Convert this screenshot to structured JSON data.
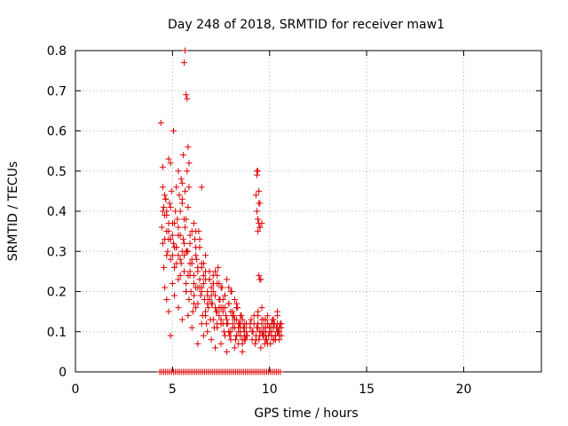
{
  "chart_data": {
    "type": "scatter",
    "title": "Day 248 of 2018, SRMTID for receiver maw1",
    "xlabel": "GPS time / hours",
    "ylabel": "SRMTID / TECUs",
    "xlim": [
      0,
      24
    ],
    "ylim": [
      0,
      0.8
    ],
    "xticks": [
      0,
      5,
      10,
      15,
      20
    ],
    "yticks": [
      0,
      0.1,
      0.2,
      0.3,
      0.4,
      0.5,
      0.6,
      0.7,
      0.8
    ],
    "xtick_labels": [
      "0",
      "5",
      "10",
      "15",
      "20"
    ],
    "ytick_labels": [
      "0",
      "0.1",
      "0.2",
      "0.3",
      "0.4",
      "0.5",
      "0.6",
      "0.7",
      "0.8"
    ],
    "grid": true,
    "marker": "+",
    "color": "#dd0000",
    "series": [
      {
        "name": "maw1",
        "x": [
          4.45,
          4.55,
          4.6,
          4.65,
          4.7,
          4.75,
          4.8,
          4.85,
          4.9,
          4.95,
          5.0,
          5.05,
          5.1,
          5.15,
          5.2,
          5.25,
          5.3,
          5.35,
          5.4,
          5.45,
          5.5,
          5.55,
          5.6,
          5.65,
          5.7,
          5.75,
          5.8,
          5.85,
          5.9,
          5.95,
          6.0,
          6.05,
          6.1,
          6.15,
          6.2,
          6.25,
          6.3,
          6.35,
          6.4,
          6.45,
          6.5,
          6.55,
          6.6,
          6.65,
          6.7,
          6.75,
          6.8,
          6.85,
          6.9,
          6.95,
          7.0,
          7.05,
          7.1,
          7.15,
          7.2,
          7.25,
          7.3,
          7.35,
          7.4,
          7.45,
          7.5,
          7.55,
          7.6,
          7.65,
          7.7,
          7.75,
          7.8,
          7.85,
          7.9,
          7.95,
          8.0,
          8.05,
          8.1,
          8.15,
          8.2,
          8.25,
          8.3,
          8.35,
          8.4,
          8.45,
          8.5,
          8.55,
          8.6,
          8.65,
          8.7,
          8.75,
          8.8,
          8.85,
          9.0,
          9.05,
          9.1,
          9.15,
          9.2,
          9.25,
          9.3,
          9.35,
          9.4,
          9.45,
          9.5,
          9.55,
          9.6,
          9.65,
          9.7,
          9.75,
          9.8,
          9.85,
          9.9,
          9.95,
          10.0,
          10.05,
          10.1,
          10.15,
          10.2,
          10.25,
          10.3,
          10.35,
          10.4,
          10.45,
          10.5,
          10.55,
          10.6,
          4.5,
          4.6,
          4.7,
          4.8,
          4.9,
          5.0,
          5.1,
          5.2,
          5.3,
          5.4,
          5.5,
          5.6,
          5.7,
          5.8,
          5.9,
          6.0,
          6.1,
          6.2,
          6.3,
          6.4,
          6.5,
          6.6,
          6.7,
          6.8,
          6.9,
          7.0,
          7.1,
          7.2,
          7.3,
          7.4,
          7.5,
          7.6,
          7.7,
          7.8,
          7.9,
          8.0,
          8.1,
          8.2,
          8.3,
          8.4,
          8.5,
          8.6,
          8.7,
          8.8,
          9.0,
          9.1,
          9.2,
          9.3,
          9.4,
          9.5,
          9.6,
          9.7,
          9.8,
          9.9,
          10.0,
          10.1,
          10.2,
          10.3,
          10.4,
          10.5,
          4.5,
          4.6,
          4.65,
          4.7,
          4.8,
          4.9,
          5.0,
          5.1,
          5.2,
          5.3,
          5.4,
          5.45,
          5.5,
          5.6,
          5.65,
          5.7,
          5.75,
          5.8,
          5.85,
          5.9,
          6.0,
          6.1,
          6.2,
          6.3,
          6.4,
          6.5,
          6.6,
          6.7,
          6.8,
          6.9,
          7.0,
          7.1,
          7.2,
          7.3,
          7.4,
          7.5,
          7.6,
          7.7,
          7.8,
          7.9,
          8.0,
          8.1,
          8.2,
          8.3,
          8.4,
          8.5,
          8.6,
          8.7,
          8.8,
          9.3,
          9.35,
          9.4,
          9.45,
          9.5,
          9.55,
          9.6,
          9.7,
          9.8,
          9.9,
          10.0,
          10.1,
          10.2,
          10.3,
          10.4,
          10.5,
          10.6,
          4.5,
          4.55,
          4.6,
          4.7,
          4.8,
          4.9,
          5.0,
          5.1,
          5.2,
          5.3,
          5.4,
          5.5,
          5.6,
          5.7,
          5.8,
          5.9,
          6.0,
          6.1,
          6.2,
          6.3,
          6.4,
          6.5,
          6.6,
          6.7,
          6.8,
          6.9,
          7.0,
          7.1,
          7.2,
          7.3,
          7.4,
          7.5,
          7.6,
          7.7,
          7.8,
          7.9,
          8.0,
          8.1,
          8.2,
          8.3,
          8.4,
          8.5,
          8.6,
          8.7,
          9.4,
          9.5,
          9.6,
          9.7,
          9.8,
          9.9,
          10.0,
          10.1,
          10.2,
          10.3,
          10.4,
          10.5,
          4.5,
          4.7,
          4.9,
          5.1,
          5.3,
          5.5,
          5.7,
          5.9,
          6.1,
          6.3,
          6.5,
          6.7,
          6.9,
          7.1,
          7.3,
          7.5,
          7.7,
          7.9,
          8.1,
          8.3,
          8.5,
          8.7,
          9.4,
          9.6,
          9.8,
          10.0,
          10.2,
          10.4,
          10.6,
          4.4,
          4.8,
          5.05,
          5.3,
          5.55,
          5.6,
          5.65,
          5.7,
          5.75,
          5.8,
          5.85,
          6.2,
          6.5,
          9.35,
          9.4,
          9.45,
          9.5,
          9.35,
          9.4,
          9.45,
          9.5,
          9.4,
          9.45,
          9.5,
          4.35,
          4.45,
          4.55,
          4.65,
          4.75,
          4.85,
          4.95,
          5.05,
          5.15,
          5.25,
          5.35,
          5.45,
          5.55,
          5.65,
          5.75,
          5.85,
          5.95,
          6.05,
          6.15,
          6.25,
          6.35,
          6.45,
          6.55,
          6.65,
          6.75,
          6.85,
          6.95,
          7.05,
          7.15,
          7.25,
          7.35,
          7.45,
          7.55,
          7.65,
          7.75,
          7.85,
          7.95,
          8.05,
          8.15,
          8.25,
          8.35,
          8.45,
          8.55,
          8.65,
          8.75,
          8.85,
          8.95,
          9.05,
          9.15,
          9.25,
          9.35,
          9.45,
          9.55,
          9.65,
          9.75,
          9.85,
          9.95,
          10.05,
          10.15,
          10.25,
          10.35,
          10.45,
          10.55
        ],
        "y": [
          0.36,
          0.41,
          0.33,
          0.43,
          0.39,
          0.3,
          0.35,
          0.42,
          0.28,
          0.45,
          0.37,
          0.32,
          0.26,
          0.4,
          0.31,
          0.38,
          0.29,
          0.44,
          0.34,
          0.27,
          0.47,
          0.33,
          0.25,
          0.36,
          0.22,
          0.3,
          0.24,
          0.18,
          0.32,
          0.2,
          0.27,
          0.15,
          0.24,
          0.33,
          0.21,
          0.28,
          0.17,
          0.35,
          0.23,
          0.19,
          0.26,
          0.14,
          0.22,
          0.18,
          0.25,
          0.12,
          0.2,
          0.16,
          0.23,
          0.13,
          0.21,
          0.17,
          0.24,
          0.11,
          0.19,
          0.15,
          0.22,
          0.26,
          0.14,
          0.18,
          0.12,
          0.21,
          0.16,
          0.1,
          0.19,
          0.14,
          0.23,
          0.12,
          0.17,
          0.09,
          0.15,
          0.2,
          0.11,
          0.14,
          0.18,
          0.08,
          0.13,
          0.16,
          0.1,
          0.12,
          0.09,
          0.14,
          0.07,
          0.11,
          0.1,
          0.08,
          0.12,
          0.09,
          0.11,
          0.13,
          0.08,
          0.1,
          0.12,
          0.07,
          0.09,
          0.11,
          0.14,
          0.08,
          0.1,
          0.06,
          0.12,
          0.09,
          0.11,
          0.07,
          0.1,
          0.08,
          0.12,
          0.09,
          0.11,
          0.07,
          0.1,
          0.13,
          0.08,
          0.12,
          0.09,
          0.11,
          0.14,
          0.1,
          0.08,
          0.12,
          0.09,
          0.46,
          0.39,
          0.35,
          0.33,
          0.41,
          0.29,
          0.37,
          0.31,
          0.34,
          0.28,
          0.42,
          0.32,
          0.38,
          0.3,
          0.27,
          0.35,
          0.22,
          0.29,
          0.25,
          0.31,
          0.2,
          0.27,
          0.23,
          0.17,
          0.25,
          0.19,
          0.22,
          0.16,
          0.24,
          0.18,
          0.21,
          0.15,
          0.19,
          0.13,
          0.17,
          0.2,
          0.14,
          0.11,
          0.16,
          0.12,
          0.1,
          0.13,
          0.11,
          0.09,
          0.12,
          0.1,
          0.14,
          0.08,
          0.11,
          0.09,
          0.13,
          0.1,
          0.08,
          0.12,
          0.1,
          0.09,
          0.11,
          0.08,
          0.12,
          0.1,
          0.51,
          0.44,
          0.43,
          0.4,
          0.37,
          0.52,
          0.34,
          0.31,
          0.46,
          0.36,
          0.4,
          0.48,
          0.43,
          0.38,
          0.45,
          0.3,
          0.5,
          0.41,
          0.46,
          0.34,
          0.28,
          0.37,
          0.31,
          0.26,
          0.33,
          0.21,
          0.24,
          0.29,
          0.19,
          0.23,
          0.17,
          0.2,
          0.25,
          0.15,
          0.22,
          0.13,
          0.18,
          0.16,
          0.12,
          0.21,
          0.1,
          0.15,
          0.13,
          0.09,
          0.11,
          0.14,
          0.08,
          0.12,
          0.1,
          0.44,
          0.49,
          0.38,
          0.42,
          0.36,
          0.23,
          0.37,
          0.09,
          0.13,
          0.07,
          0.11,
          0.09,
          0.12,
          0.08,
          0.1,
          0.09,
          0.11,
          0.32,
          0.26,
          0.21,
          0.18,
          0.15,
          0.09,
          0.22,
          0.19,
          0.27,
          0.16,
          0.24,
          0.13,
          0.29,
          0.2,
          0.14,
          0.25,
          0.11,
          0.19,
          0.16,
          0.07,
          0.21,
          0.12,
          0.09,
          0.15,
          0.1,
          0.18,
          0.08,
          0.13,
          0.06,
          0.11,
          0.16,
          0.07,
          0.12,
          0.09,
          0.05,
          0.1,
          0.08,
          0.12,
          0.06,
          0.09,
          0.07,
          0.11,
          0.05,
          0.08,
          0.15,
          0.1,
          0.16,
          0.13,
          0.11,
          0.14,
          0.1,
          0.12,
          0.13,
          0.09,
          0.15,
          0.11,
          0.4,
          0.29,
          0.33,
          0.26,
          0.23,
          0.3,
          0.2,
          0.24,
          0.17,
          0.21,
          0.27,
          0.14,
          0.18,
          0.22,
          0.12,
          0.16,
          0.19,
          0.1,
          0.14,
          0.17,
          0.12,
          0.09,
          0.12,
          0.1,
          0.09,
          0.11,
          0.08,
          0.1,
          0.12,
          0.62,
          0.53,
          0.6,
          0.5,
          0.54,
          0.77,
          0.8,
          0.69,
          0.68,
          0.56,
          0.52,
          0.35,
          0.46,
          0.5,
          0.5,
          0.45,
          0.42,
          0.4,
          0.38,
          0.37,
          0.36,
          0.35,
          0.24,
          0.23,
          0,
          0,
          0,
          0,
          0,
          0,
          0,
          0,
          0,
          0,
          0,
          0,
          0,
          0,
          0,
          0,
          0,
          0,
          0,
          0,
          0,
          0,
          0,
          0,
          0,
          0,
          0,
          0,
          0,
          0,
          0,
          0,
          0,
          0,
          0,
          0,
          0,
          0,
          0,
          0,
          0,
          0,
          0,
          0,
          0,
          0,
          0,
          0,
          0,
          0,
          0,
          0,
          0,
          0,
          0,
          0,
          0,
          0,
          0,
          0,
          0,
          0,
          0
        ]
      }
    ]
  }
}
